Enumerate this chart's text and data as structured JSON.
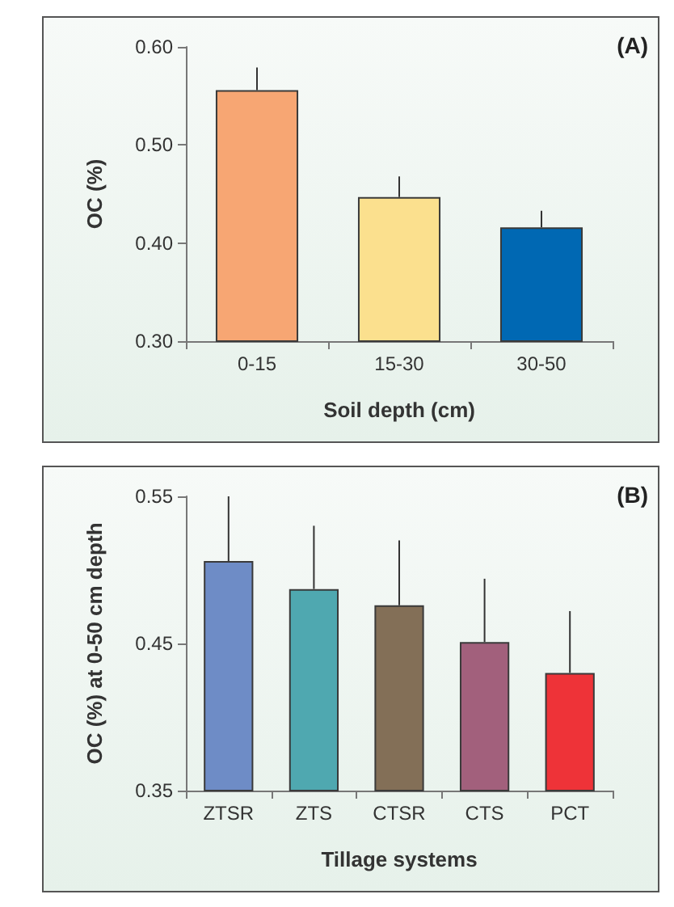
{
  "chart_data": [
    {
      "type": "bar",
      "xlabel": "Soil depth (cm)",
      "ylabel": "OC (%)",
      "annotations": [
        "(A)"
      ],
      "categories": [
        "0-15",
        "15-30",
        "30-50"
      ],
      "values": [
        0.556,
        0.447,
        0.416
      ],
      "colors": [
        "#f7a673",
        "#fbe08e",
        "#0068b3"
      ],
      "errors": [
        [
          0.556,
          0.579
        ],
        [
          0.447,
          0.468
        ],
        [
          0.416,
          0.433
        ]
      ],
      "ylim": [
        0.3,
        0.6
      ],
      "yticks": [
        {
          "value": 0.3,
          "label": "0.30"
        },
        {
          "value": 0.4,
          "label": "0.40"
        },
        {
          "value": 0.5,
          "label": "0.50"
        },
        {
          "value": 0.6,
          "label": "0.60"
        }
      ],
      "grid": false
    },
    {
      "type": "bar",
      "xlabel": "Tillage systems",
      "ylabel": "OC (%) at 0-50 cm depth",
      "annotations": [
        "(B)"
      ],
      "categories": [
        "ZTSR",
        "ZTS",
        "CTSR",
        "CTS",
        "PCT"
      ],
      "values": [
        0.506,
        0.487,
        0.476,
        0.451,
        0.43
      ],
      "colors": [
        "#6e8cc6",
        "#4fa8b0",
        "#836f57",
        "#a2607c",
        "#ee3338"
      ],
      "errors": [
        [
          0.506,
          0.55
        ],
        [
          0.487,
          0.53
        ],
        [
          0.476,
          0.52
        ],
        [
          0.451,
          0.494
        ],
        [
          0.43,
          0.472
        ]
      ],
      "ylim": [
        0.35,
        0.55
      ],
      "yticks": [
        0.35,
        0.45,
        0.55
      ],
      "grid": false
    }
  ]
}
